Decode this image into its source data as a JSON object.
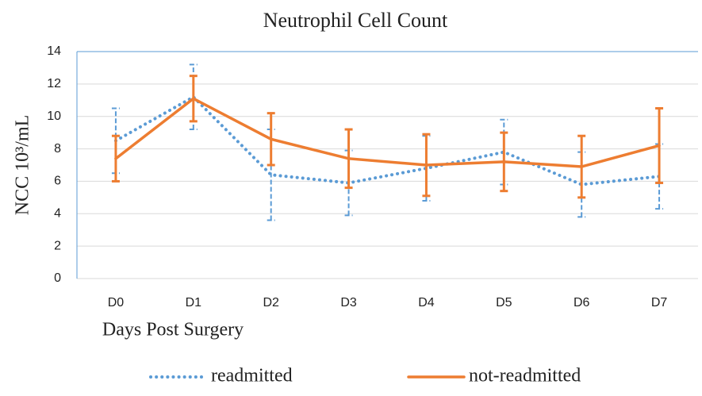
{
  "chart_data": {
    "type": "line",
    "title": "Neutrophil Cell Count",
    "x_label": "Days Post Surgery",
    "y_label": "NCC 10³/mL",
    "categories": [
      "D0",
      "D1",
      "D2",
      "D3",
      "D4",
      "D5",
      "D6",
      "D7"
    ],
    "series": [
      {
        "name": "readmitted",
        "color": "#5b9bd5",
        "style": "dotted",
        "values": [
          8.5,
          11.2,
          6.4,
          5.9,
          6.8,
          7.8,
          5.8,
          6.3
        ],
        "errors": [
          2.0,
          2.0,
          2.8,
          2.0,
          2.0,
          2.0,
          2.0,
          2.0
        ]
      },
      {
        "name": "not-readmitted",
        "color": "#ed7d31",
        "style": "solid",
        "values": [
          7.4,
          11.1,
          8.6,
          7.4,
          7.0,
          7.2,
          6.9,
          8.2
        ],
        "errors": [
          1.4,
          1.4,
          1.6,
          1.8,
          1.9,
          1.8,
          1.9,
          2.3
        ]
      }
    ],
    "ylim": [
      0,
      14
    ],
    "yticks": [
      0,
      2,
      4,
      6,
      8,
      10,
      12,
      14
    ],
    "grid": true,
    "legend": "bottom"
  }
}
